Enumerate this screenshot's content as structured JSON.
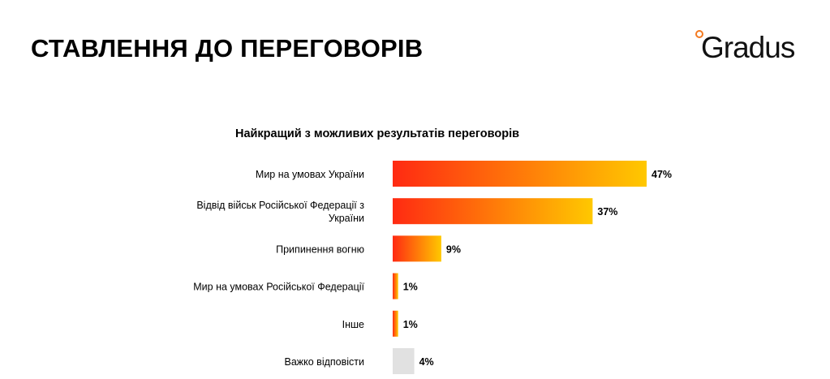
{
  "slide": {
    "title": "СТАВЛЕННЯ ДО ПЕРЕГОВОРІВ",
    "logo_text": "Gradus"
  },
  "colors": {
    "gradient_start": "#ff2a12",
    "gradient_end": "#ffc800",
    "neutral_bar": "#e1e1e1",
    "logo_accent": "#f47a20"
  },
  "chart_data": {
    "type": "bar",
    "orientation": "horizontal",
    "title": "Найкращий з можливих результатів переговорів",
    "categories": [
      [
        "Мир на умовах України"
      ],
      [
        "Відвід військ Російської Федерації з",
        "України"
      ],
      [
        "Припинення вогню"
      ],
      [
        "Мир на умовах Російської Федерації"
      ],
      [
        "Інше"
      ],
      [
        "Важко відповісти"
      ]
    ],
    "values": [
      47,
      37,
      9,
      1,
      1,
      4
    ],
    "value_labels": [
      "47%",
      "37%",
      "9%",
      "1%",
      "1%",
      "4%"
    ],
    "bar_styles": [
      "gradient",
      "gradient",
      "gradient",
      "gradient",
      "gradient",
      "neutral"
    ],
    "unit": "%",
    "xlim": [
      0,
      50
    ],
    "grid": false,
    "legend": "none"
  }
}
